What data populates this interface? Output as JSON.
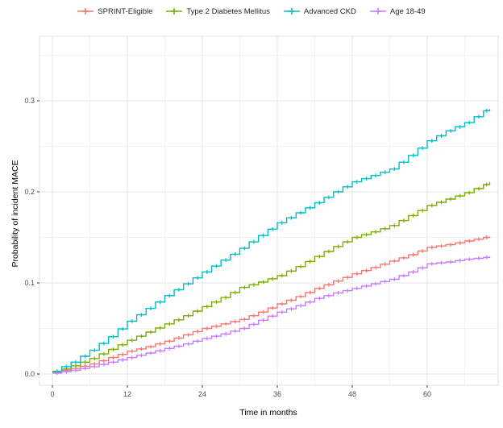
{
  "figure": {
    "background": "#ffffff",
    "panel_border_color": "#e0e0e0",
    "grid_major_color": "#e4e4e4",
    "grid_minor_color": "#f2f2f2",
    "tick_mark_color": "#343434",
    "tick_label_color": "#4d4d4d"
  },
  "legend": {
    "position": "top-center",
    "items": [
      {
        "label": "SPRINT-Eligible",
        "color": "#F8766D",
        "key_shape": "line-with-plus"
      },
      {
        "label": "Type 2 Diabetes Mellitus",
        "color": "#7CAE00",
        "key_shape": "line-with-plus"
      },
      {
        "label": "Advanced CKD",
        "color": "#00BFC4",
        "key_shape": "line-with-plus"
      },
      {
        "label": "Age 18-49",
        "color": "#C77CFF",
        "key_shape": "line-with-plus"
      }
    ]
  },
  "chart_data": {
    "type": "line",
    "subtype": "kaplan-meier-step-cumulative-incidence",
    "title": "",
    "xlabel": "Time in months",
    "ylabel": "Probability of incident MACE",
    "xlim": [
      -2.06,
      71.35
    ],
    "ylim": [
      -0.0124,
      0.3708
    ],
    "x_ticks": [
      0,
      12,
      24,
      36,
      48,
      60
    ],
    "x_tick_labels": [
      "0",
      "12",
      "24",
      "36",
      "48",
      "60"
    ],
    "x_minor_ticks": [
      6,
      18,
      30,
      42,
      54,
      66
    ],
    "y_ticks": [
      0,
      0.1,
      0.2,
      0.3
    ],
    "y_tick_labels": [
      "0.0",
      "0.1",
      "0.2",
      "0.3"
    ],
    "y_minor_ticks": [
      0.05,
      0.15,
      0.25,
      0.35
    ],
    "grid": true,
    "censor_marks": "plus-signs-along-curves",
    "x": [
      0,
      3,
      6,
      9,
      12,
      15,
      18,
      21,
      24,
      27,
      30,
      33,
      36,
      39,
      42,
      45,
      48,
      51,
      54,
      57,
      60,
      63,
      66,
      69,
      70
    ],
    "series": [
      {
        "name": "SPRINT-Eligible",
        "color": "#F8766D",
        "values": [
          0.002,
          0.006,
          0.011,
          0.018,
          0.025,
          0.03,
          0.036,
          0.043,
          0.05,
          0.055,
          0.06,
          0.068,
          0.077,
          0.085,
          0.094,
          0.102,
          0.11,
          0.117,
          0.124,
          0.131,
          0.139,
          0.142,
          0.146,
          0.15,
          0.151
        ]
      },
      {
        "name": "Type 2 Diabetes Mellitus",
        "color": "#7CAE00",
        "values": [
          0.002,
          0.009,
          0.017,
          0.027,
          0.037,
          0.046,
          0.055,
          0.064,
          0.074,
          0.084,
          0.095,
          0.101,
          0.108,
          0.118,
          0.129,
          0.14,
          0.15,
          0.156,
          0.163,
          0.174,
          0.185,
          0.192,
          0.199,
          0.208,
          0.211
        ]
      },
      {
        "name": "Advanced CKD",
        "color": "#00BFC4",
        "values": [
          0.003,
          0.013,
          0.026,
          0.041,
          0.058,
          0.072,
          0.086,
          0.099,
          0.112,
          0.125,
          0.138,
          0.152,
          0.166,
          0.177,
          0.188,
          0.2,
          0.211,
          0.218,
          0.225,
          0.24,
          0.256,
          0.267,
          0.276,
          0.289,
          0.291
        ]
      },
      {
        "name": "Age 18-49",
        "color": "#C77CFF",
        "values": [
          0.001,
          0.004,
          0.008,
          0.013,
          0.018,
          0.023,
          0.028,
          0.033,
          0.039,
          0.044,
          0.05,
          0.059,
          0.068,
          0.075,
          0.083,
          0.089,
          0.094,
          0.099,
          0.104,
          0.112,
          0.121,
          0.123,
          0.126,
          0.128,
          0.129
        ]
      }
    ]
  }
}
